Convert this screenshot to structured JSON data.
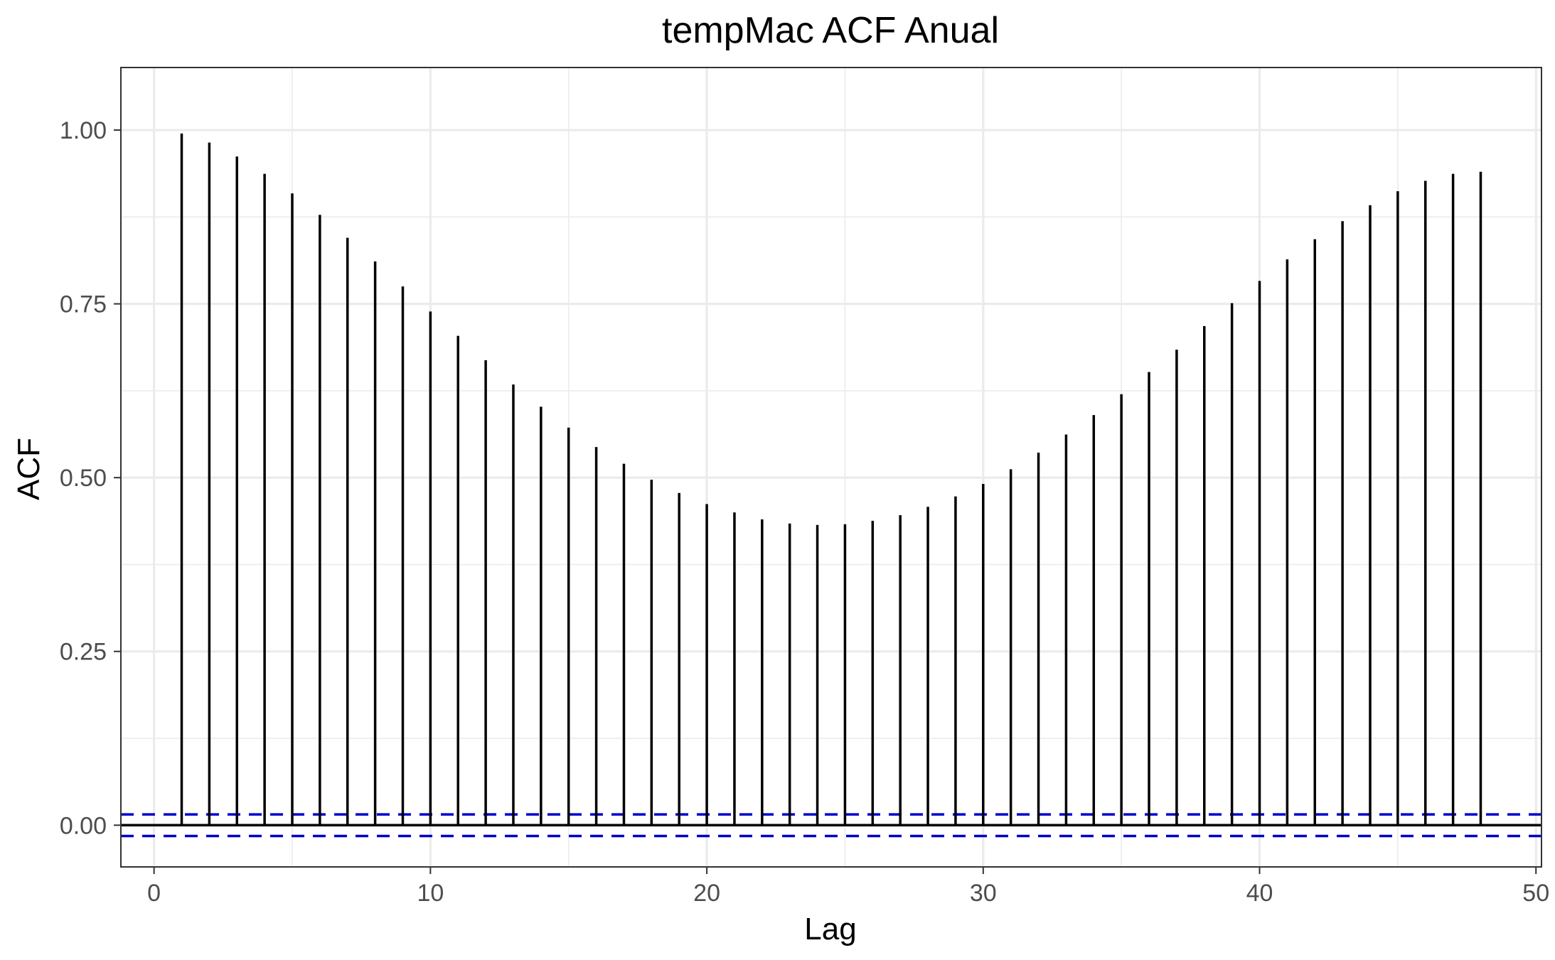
{
  "chart_data": {
    "type": "bar",
    "title": "tempMac ACF Anual",
    "xlabel": "Lag",
    "ylabel": "ACF",
    "xlim": [
      -1.2,
      50.2
    ],
    "ylim": [
      -0.06,
      1.09
    ],
    "x_ticks": [
      0,
      10,
      20,
      30,
      40,
      50
    ],
    "x_tick_labels": [
      "0",
      "10",
      "20",
      "30",
      "40",
      "50"
    ],
    "y_ticks": [
      0,
      0.25,
      0.5,
      0.75,
      1.0
    ],
    "y_tick_labels": [
      "0.00",
      "0.25",
      "0.50",
      "0.75",
      "1.00"
    ],
    "grid": true,
    "series": [
      {
        "x": [
          1,
          2,
          3,
          4,
          5,
          6,
          7,
          8,
          9,
          10,
          11,
          12,
          13,
          14,
          15,
          16,
          17,
          18,
          19,
          20,
          21,
          22,
          23,
          24,
          25,
          26,
          27,
          28,
          29,
          30,
          31,
          32,
          33,
          34,
          35,
          36,
          37,
          38,
          39,
          40,
          41,
          42,
          43,
          44,
          45,
          46,
          47,
          48
        ],
        "values": [
          0.995,
          0.982,
          0.962,
          0.937,
          0.909,
          0.878,
          0.845,
          0.811,
          0.775,
          0.739,
          0.704,
          0.669,
          0.634,
          0.602,
          0.572,
          0.544,
          0.52,
          0.497,
          0.478,
          0.462,
          0.45,
          0.44,
          0.434,
          0.432,
          0.433,
          0.438,
          0.446,
          0.458,
          0.473,
          0.491,
          0.512,
          0.536,
          0.562,
          0.59,
          0.62,
          0.652,
          0.684,
          0.718,
          0.751,
          0.783,
          0.814,
          0.843,
          0.869,
          0.892,
          0.912,
          0.927,
          0.937,
          0.94
        ]
      }
    ],
    "confidence_bounds": [
      0.0155,
      -0.0155
    ],
    "colors": {
      "bars": "#000000",
      "confidence_line": "#0000cc",
      "grid": "#ebebeb",
      "panel_border": "#333333"
    }
  }
}
